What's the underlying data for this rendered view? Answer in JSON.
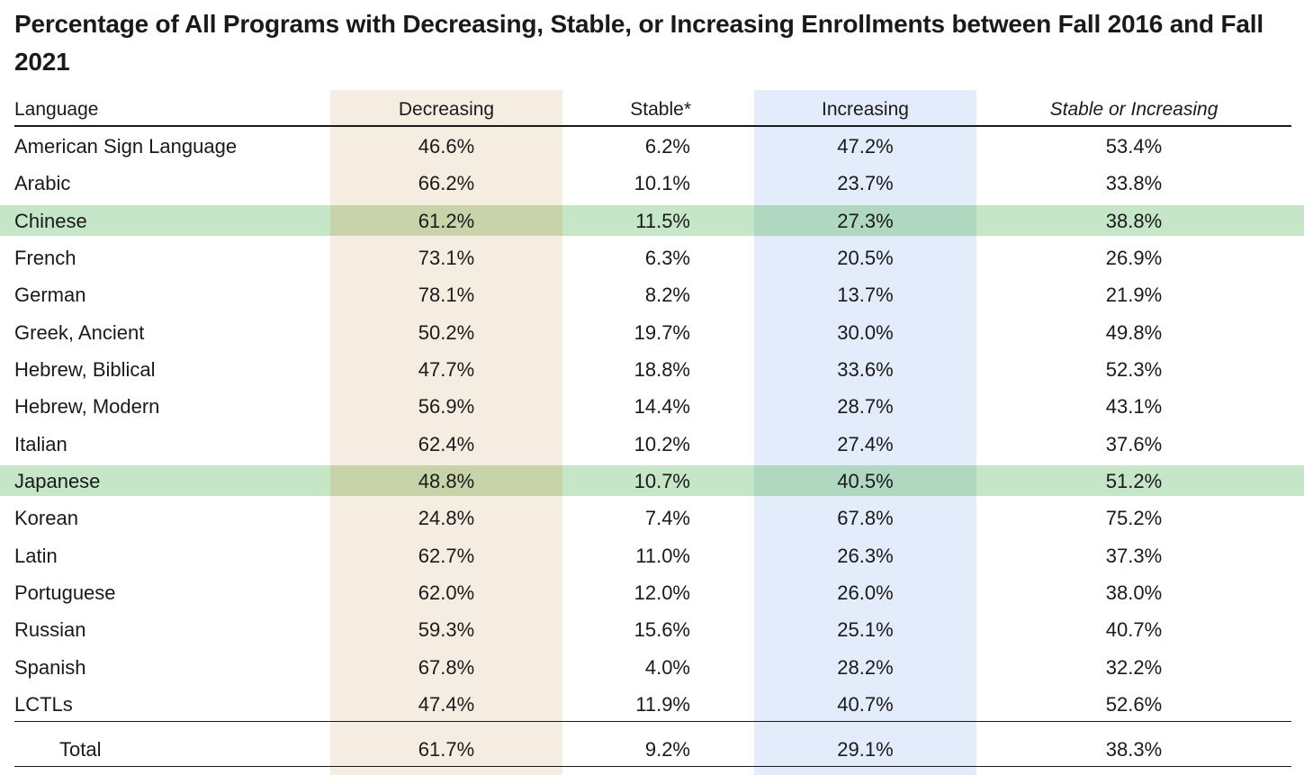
{
  "title": "Percentage of All Programs with Decreasing, Stable, or Increasing Enrollments between Fall 2016 and Fall 2021",
  "colors": {
    "decreasing_band": "#f5ede2",
    "increasing_band": "#e3ecfa",
    "highlight_row": "#c6e6c8",
    "highlight_dec": "#c8d3a9",
    "highlight_inc": "#b0d8c0",
    "text": "#1a1a1a"
  },
  "headers": {
    "language": "Language",
    "decreasing": "Decreasing",
    "stable": "Stable*",
    "increasing": "Increasing",
    "stable_or_increasing": "Stable or Increasing"
  },
  "rows": [
    {
      "language": "American Sign Language",
      "decreasing": "46.6%",
      "stable": "6.2%",
      "increasing": "47.2%",
      "stable_or_increasing": "53.4%",
      "highlighted": false
    },
    {
      "language": "Arabic",
      "decreasing": "66.2%",
      "stable": "10.1%",
      "increasing": "23.7%",
      "stable_or_increasing": "33.8%",
      "highlighted": false
    },
    {
      "language": "Chinese",
      "decreasing": "61.2%",
      "stable": "11.5%",
      "increasing": "27.3%",
      "stable_or_increasing": "38.8%",
      "highlighted": true
    },
    {
      "language": "French",
      "decreasing": "73.1%",
      "stable": "6.3%",
      "increasing": "20.5%",
      "stable_or_increasing": "26.9%",
      "highlighted": false
    },
    {
      "language": "German",
      "decreasing": "78.1%",
      "stable": "8.2%",
      "increasing": "13.7%",
      "stable_or_increasing": "21.9%",
      "highlighted": false
    },
    {
      "language": "Greek, Ancient",
      "decreasing": "50.2%",
      "stable": "19.7%",
      "increasing": "30.0%",
      "stable_or_increasing": "49.8%",
      "highlighted": false
    },
    {
      "language": "Hebrew, Biblical",
      "decreasing": "47.7%",
      "stable": "18.8%",
      "increasing": "33.6%",
      "stable_or_increasing": "52.3%",
      "highlighted": false
    },
    {
      "language": "Hebrew, Modern",
      "decreasing": "56.9%",
      "stable": "14.4%",
      "increasing": "28.7%",
      "stable_or_increasing": "43.1%",
      "highlighted": false
    },
    {
      "language": "Italian",
      "decreasing": "62.4%",
      "stable": "10.2%",
      "increasing": "27.4%",
      "stable_or_increasing": "37.6%",
      "highlighted": false
    },
    {
      "language": "Japanese",
      "decreasing": "48.8%",
      "stable": "10.7%",
      "increasing": "40.5%",
      "stable_or_increasing": "51.2%",
      "highlighted": true
    },
    {
      "language": "Korean",
      "decreasing": "24.8%",
      "stable": "7.4%",
      "increasing": "67.8%",
      "stable_or_increasing": "75.2%",
      "highlighted": false
    },
    {
      "language": "Latin",
      "decreasing": "62.7%",
      "stable": "11.0%",
      "increasing": "26.3%",
      "stable_or_increasing": "37.3%",
      "highlighted": false
    },
    {
      "language": "Portuguese",
      "decreasing": "62.0%",
      "stable": "12.0%",
      "increasing": "26.0%",
      "stable_or_increasing": "38.0%",
      "highlighted": false
    },
    {
      "language": "Russian",
      "decreasing": "59.3%",
      "stable": "15.6%",
      "increasing": "25.1%",
      "stable_or_increasing": "40.7%",
      "highlighted": false
    },
    {
      "language": "Spanish",
      "decreasing": "67.8%",
      "stable": "4.0%",
      "increasing": "28.2%",
      "stable_or_increasing": "32.2%",
      "highlighted": false
    },
    {
      "language": "LCTLs",
      "decreasing": "47.4%",
      "stable": "11.9%",
      "increasing": "40.7%",
      "stable_or_increasing": "52.6%",
      "highlighted": false
    }
  ],
  "total": {
    "language": "Total",
    "decreasing": "61.7%",
    "stable": "9.2%",
    "increasing": "29.1%",
    "stable_or_increasing": "38.3%"
  }
}
